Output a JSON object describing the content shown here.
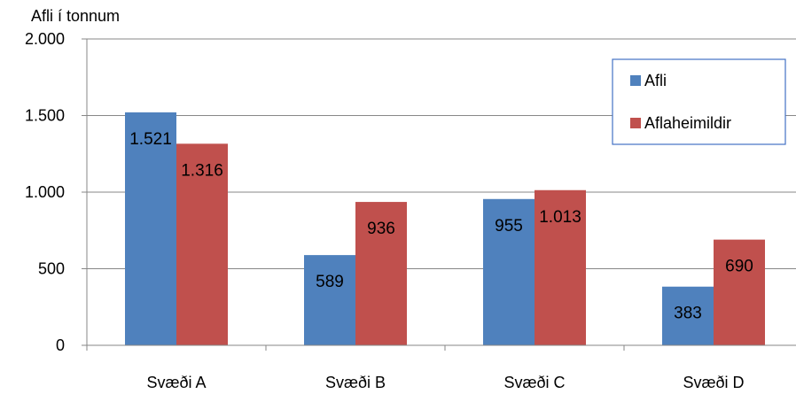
{
  "chart_data": {
    "type": "bar",
    "title": "",
    "ylabel": "Afli í tonnum",
    "xlabel": "",
    "categories": [
      "Svæði A",
      "Svæði B",
      "Svæði C",
      "Svæði D"
    ],
    "series": [
      {
        "name": "Afli",
        "color": "#4F81BD",
        "values": [
          1521,
          589,
          955,
          383
        ],
        "labels": [
          "1.521",
          "589",
          "955",
          "383"
        ]
      },
      {
        "name": "Aflaheimildir",
        "color": "#C0504D",
        "values": [
          1316,
          936,
          1013,
          690
        ],
        "labels": [
          "1.316",
          "936",
          "1.013",
          "690"
        ]
      }
    ],
    "ylim": [
      0,
      2000
    ],
    "yticks": [
      0,
      500,
      1000,
      1500,
      2000
    ],
    "ytick_labels": [
      "0",
      "500",
      "1.000",
      "1.500",
      "2.000"
    ],
    "grid": true,
    "legend_position": "top-right"
  }
}
